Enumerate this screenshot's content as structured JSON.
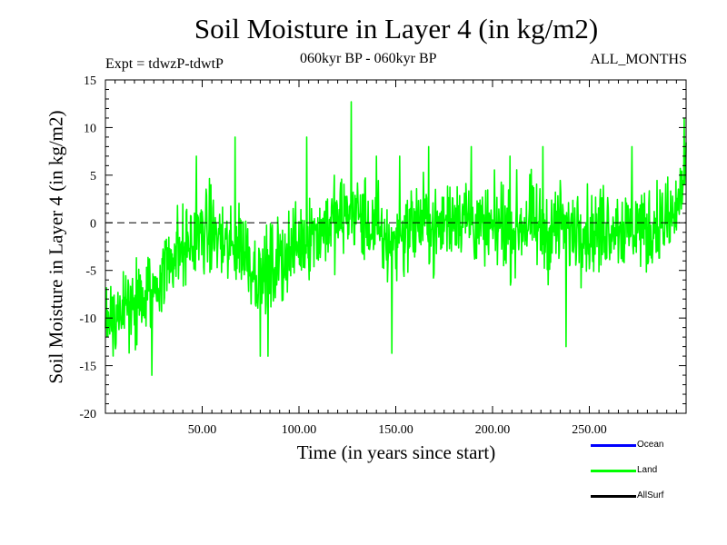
{
  "chart_data": {
    "type": "line",
    "title": "Soil Moisture in Layer 4 (in kg/m2)",
    "subtitle_left": "Expt = tdwzP-tdwtP",
    "subtitle_center": "060kyr BP - 060kyr BP",
    "subtitle_right": "ALL_MONTHS",
    "xlabel": "Time (in years since start)",
    "ylabel": "Soil Moisture in Layer 4 (in kg/m2)",
    "xlim": [
      0,
      300
    ],
    "ylim": [
      -20,
      15
    ],
    "x_ticks": [
      50,
      100,
      150,
      200,
      250
    ],
    "x_tick_labels": [
      "50.00",
      "100.00",
      "150.00",
      "200.00",
      "250.00"
    ],
    "y_ticks": [
      -20,
      -15,
      -10,
      -5,
      0,
      5,
      10,
      15
    ],
    "y_tick_labels": [
      "-20",
      "-15",
      "-10",
      "-5",
      "0",
      "5",
      "10",
      "15"
    ],
    "reference_line": {
      "y": 0,
      "style": "dashed"
    },
    "legend_position": "bottom-right",
    "series": [
      {
        "name": "Ocean",
        "label": "Ocean",
        "color": "#0000ff",
        "visible": false,
        "values": []
      },
      {
        "name": "Land",
        "label": "Land",
        "color": "#00ff00",
        "visible": true,
        "step": 0.25,
        "anchors": [
          [
            0,
            -9
          ],
          [
            5,
            -10
          ],
          [
            10,
            -9
          ],
          [
            15,
            -9
          ],
          [
            20,
            -8
          ],
          [
            25,
            -7
          ],
          [
            30,
            -5
          ],
          [
            35,
            -3
          ],
          [
            40,
            -3
          ],
          [
            45,
            -2
          ],
          [
            50,
            -1
          ],
          [
            55,
            -1
          ],
          [
            60,
            -2
          ],
          [
            65,
            -3
          ],
          [
            70,
            -2
          ],
          [
            75,
            -4
          ],
          [
            80,
            -6
          ],
          [
            85,
            -5
          ],
          [
            90,
            -4
          ],
          [
            95,
            -3
          ],
          [
            100,
            -2
          ],
          [
            105,
            -1
          ],
          [
            110,
            -1
          ],
          [
            115,
            0
          ],
          [
            120,
            0
          ],
          [
            125,
            1
          ],
          [
            130,
            1
          ],
          [
            135,
            0
          ],
          [
            140,
            -1
          ],
          [
            145,
            -2
          ],
          [
            150,
            -2
          ],
          [
            155,
            -1
          ],
          [
            160,
            0
          ],
          [
            165,
            0
          ],
          [
            170,
            -1
          ],
          [
            175,
            0
          ],
          [
            180,
            1
          ],
          [
            185,
            1
          ],
          [
            190,
            0
          ],
          [
            195,
            -1
          ],
          [
            200,
            -1
          ],
          [
            205,
            0
          ],
          [
            210,
            -1
          ],
          [
            215,
            0
          ],
          [
            220,
            0
          ],
          [
            225,
            -1
          ],
          [
            230,
            -1
          ],
          [
            235,
            0
          ],
          [
            240,
            -1
          ],
          [
            245,
            0
          ],
          [
            250,
            -1
          ],
          [
            255,
            -1
          ],
          [
            260,
            0
          ],
          [
            265,
            0
          ],
          [
            270,
            -1
          ],
          [
            275,
            0
          ],
          [
            280,
            -1
          ],
          [
            285,
            0
          ],
          [
            290,
            0
          ],
          [
            295,
            1
          ],
          [
            300,
            6
          ]
        ],
        "peaks": [
          [
            24,
            -16
          ],
          [
            47,
            7
          ],
          [
            67,
            9
          ],
          [
            80,
            -14
          ],
          [
            84,
            -14
          ],
          [
            104,
            9
          ],
          [
            127,
            12.7
          ],
          [
            140,
            7
          ],
          [
            148,
            -13.7
          ],
          [
            152,
            7
          ],
          [
            167,
            8
          ],
          [
            189,
            8
          ],
          [
            209,
            7
          ],
          [
            226,
            8
          ],
          [
            238,
            -13
          ],
          [
            272,
            8
          ],
          [
            299,
            11
          ]
        ],
        "amplitude": 3.8
      },
      {
        "name": "AllSurf",
        "label": "AllSurf",
        "color": "#000000",
        "visible": false,
        "values": []
      }
    ]
  }
}
